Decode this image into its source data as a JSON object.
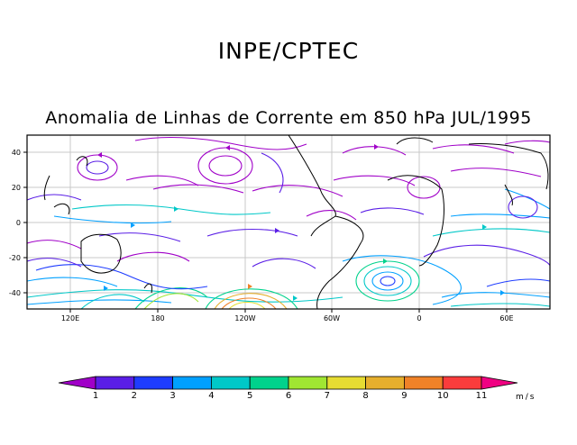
{
  "header": {
    "main_title": "INPE/CPTEC",
    "subtitle": "Anomalia de Linhas de Corrente em 850 hPa JUL/1995"
  },
  "map": {
    "lat_labels": [
      "40",
      "20",
      "0",
      "-20",
      "-40"
    ],
    "lon_labels": [
      "120E",
      "180",
      "120W",
      "60W",
      "0",
      "60E"
    ]
  },
  "colorbar": {
    "ticks": [
      "1",
      "2",
      "3",
      "4",
      "5",
      "6",
      "7",
      "8",
      "9",
      "10",
      "11"
    ],
    "units": "m/s",
    "colors": [
      "#a000c8",
      "#5a1ee6",
      "#1e3cff",
      "#00a0ff",
      "#00c8c8",
      "#00d28c",
      "#a0e632",
      "#e6dc32",
      "#e6af2d",
      "#f08228",
      "#fa3c3c",
      "#f00082"
    ]
  },
  "colors": {
    "coast": "#000000",
    "grid": "#c8c8c8"
  }
}
